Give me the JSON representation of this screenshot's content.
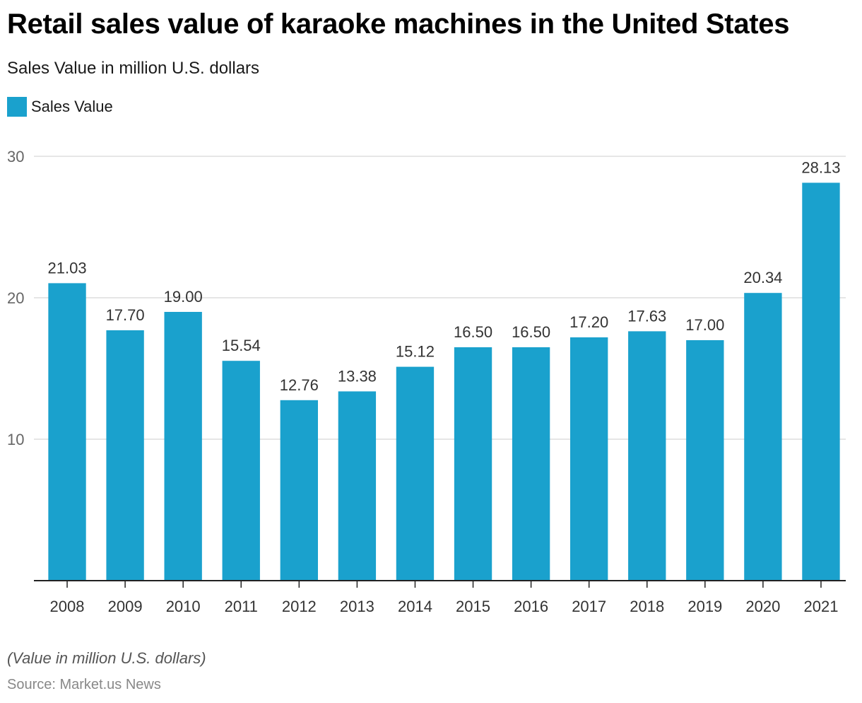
{
  "colors": {
    "bar": "#1aa1cd",
    "grid": "#dddddd",
    "axis": "#222222",
    "tick_label": "#666666",
    "data_label": "#333333"
  },
  "chart_data": {
    "type": "bar",
    "title": "Retail sales value of karaoke machines in the United States",
    "subtitle": "Sales Value in million U.S. dollars",
    "xlabel": "",
    "ylabel": "",
    "legend": {
      "position": "top-left",
      "entries": [
        "Sales Value"
      ]
    },
    "categories": [
      "2008",
      "2009",
      "2010",
      "2011",
      "2012",
      "2013",
      "2014",
      "2015",
      "2016",
      "2017",
      "2018",
      "2019",
      "2020",
      "2021"
    ],
    "series": [
      {
        "name": "Sales Value",
        "values": [
          21.03,
          17.7,
          19.0,
          15.54,
          12.76,
          13.38,
          15.12,
          16.5,
          16.5,
          17.2,
          17.63,
          17.0,
          20.34,
          28.13
        ]
      }
    ],
    "data_labels": [
      "21.03",
      "17.70",
      "19.00",
      "15.54",
      "12.76",
      "13.38",
      "15.12",
      "16.50",
      "16.50",
      "17.20",
      "17.63",
      "17.00",
      "20.34",
      "28.13"
    ],
    "ylim": [
      0,
      30
    ],
    "yticks": [
      10,
      20,
      30
    ],
    "grid": true,
    "note": "(Value in million U.S. dollars)",
    "source": "Source: Market.us News"
  }
}
